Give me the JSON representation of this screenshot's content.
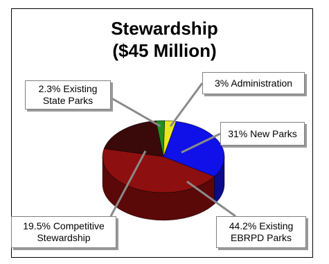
{
  "chart_data": {
    "type": "pie",
    "title": "Stewardship",
    "subtitle": "($45 Million)",
    "slices": [
      {
        "label": "31% New Parks",
        "value": 31,
        "color": "#1010e8",
        "side": "#0a0a8a"
      },
      {
        "label": "44.2% Existing EBRPD Parks",
        "value": 44.2,
        "color": "#8e0f0f",
        "side": "#5a0808"
      },
      {
        "label": "19.5% Competitive Stewardship",
        "value": 19.5,
        "color": "#3a0a0a",
        "side": "#1f0404"
      },
      {
        "label": "2.3% Existing State Parks",
        "value": 2.3,
        "color": "#1f8f1f",
        "side": "#0f5a0f"
      },
      {
        "label": "3% Administration",
        "value": 3,
        "color": "#e8e820",
        "side": "#9a9a10"
      }
    ]
  }
}
